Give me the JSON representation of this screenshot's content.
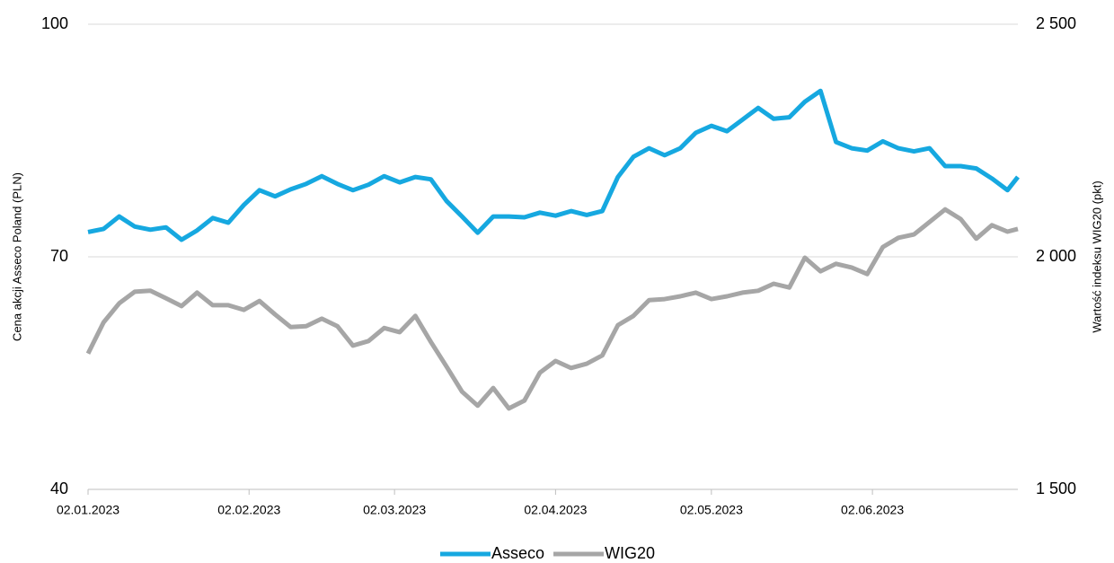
{
  "chart_data": {
    "type": "line",
    "x": [
      "02.01.2023",
      "05.01.2023",
      "08.01.2023",
      "11.01.2023",
      "14.01.2023",
      "17.01.2023",
      "20.01.2023",
      "23.01.2023",
      "26.01.2023",
      "29.01.2023",
      "01.02.2023",
      "04.02.2023",
      "07.02.2023",
      "10.02.2023",
      "13.02.2023",
      "16.02.2023",
      "19.02.2023",
      "22.02.2023",
      "25.02.2023",
      "28.02.2023",
      "03.03.2023",
      "06.03.2023",
      "09.03.2023",
      "12.03.2023",
      "15.03.2023",
      "18.03.2023",
      "21.03.2023",
      "24.03.2023",
      "27.03.2023",
      "30.03.2023",
      "02.04.2023",
      "05.04.2023",
      "08.04.2023",
      "11.04.2023",
      "14.04.2023",
      "17.04.2023",
      "20.04.2023",
      "23.04.2023",
      "26.04.2023",
      "29.04.2023",
      "02.05.2023",
      "05.05.2023",
      "08.05.2023",
      "11.05.2023",
      "14.05.2023",
      "17.05.2023",
      "20.05.2023",
      "23.05.2023",
      "26.05.2023",
      "29.05.2023",
      "01.06.2023",
      "04.06.2023",
      "07.06.2023",
      "10.06.2023",
      "13.06.2023",
      "16.06.2023",
      "19.06.2023",
      "22.06.2023",
      "25.06.2023",
      "28.06.2023",
      "30.06.2023"
    ],
    "xlim": [
      "02.01.2023",
      "30.06.2023"
    ],
    "xticks": [
      "02.01.2023",
      "02.02.2023",
      "02.03.2023",
      "02.04.2023",
      "02.05.2023",
      "02.06.2023"
    ],
    "y_label": "Cena akcji Asseco Poland (PLN)",
    "y2_label": "Wartość indeksu WIG20 (pkt)",
    "ylim": [
      40,
      100
    ],
    "yticks": [
      40,
      70,
      100
    ],
    "y2lim": [
      1500,
      2500
    ],
    "y2ticks": [
      {
        "value": 1500,
        "label": "1 500"
      },
      {
        "value": 2000,
        "label": "2 000"
      },
      {
        "value": 2500,
        "label": "2 500"
      }
    ],
    "grid": true,
    "legend": "bottom",
    "series": [
      {
        "name": "Asseco",
        "color": "#16a8e0",
        "axis": "y",
        "values": [
          73.2,
          73.6,
          75.2,
          73.9,
          73.5,
          73.8,
          72.2,
          73.4,
          75.0,
          74.4,
          76.7,
          78.6,
          77.8,
          78.7,
          79.4,
          80.4,
          79.4,
          78.6,
          79.3,
          80.4,
          79.6,
          80.3,
          80.0,
          77.2,
          75.2,
          73.1,
          75.2,
          75.2,
          75.1,
          75.7,
          75.3,
          75.9,
          75.4,
          75.9,
          80.3,
          82.9,
          84.0,
          83.1,
          84.0,
          86.0,
          86.9,
          86.2,
          87.7,
          89.2,
          87.8,
          88.0,
          90.0,
          91.4,
          84.8,
          84.0,
          83.7,
          84.9,
          84.0,
          83.6,
          84.0,
          81.7,
          81.7,
          81.4,
          80.1,
          78.6,
          80.3
        ]
      },
      {
        "name": "WIG20",
        "color": "#a6a6a6",
        "axis": "y2",
        "values": [
          1792,
          1859,
          1900,
          1925,
          1927,
          1911,
          1894,
          1923,
          1896,
          1896,
          1886,
          1905,
          1876,
          1849,
          1851,
          1867,
          1851,
          1809,
          1819,
          1847,
          1838,
          1873,
          1817,
          1764,
          1710,
          1680,
          1718,
          1674,
          1691,
          1751,
          1776,
          1761,
          1770,
          1788,
          1853,
          1873,
          1907,
          1909,
          1915,
          1923,
          1909,
          1915,
          1923,
          1927,
          1942,
          1934,
          1998,
          1969,
          1985,
          1977,
          1963,
          2021,
          2041,
          2048,
          2075,
          2102,
          2081,
          2039,
          2068,
          2054,
          2060
        ]
      }
    ]
  }
}
